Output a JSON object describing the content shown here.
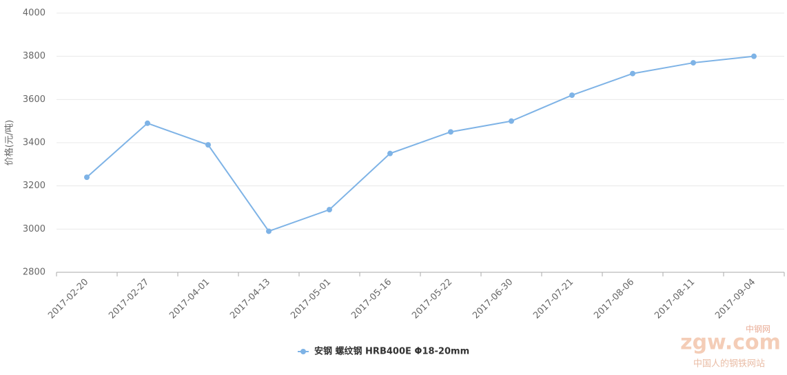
{
  "chart_data": {
    "type": "line",
    "y_label": "价格(元/吨)",
    "categories": [
      "2017-02-20",
      "2017-02-27",
      "2017-04-01",
      "2017-04-13",
      "2017-05-01",
      "2017-05-16",
      "2017-05-22",
      "2017-06-30",
      "2017-07-21",
      "2017-08-06",
      "2017-08-11",
      "2017-09-04"
    ],
    "series": [
      {
        "name": "安钢 螺纹钢 HRB400E Φ18-20mm",
        "color": "#7eb3e6",
        "values": [
          3240,
          3490,
          3390,
          2990,
          3090,
          3350,
          3450,
          3500,
          3620,
          3720,
          3770,
          3800
        ]
      }
    ],
    "ylim": [
      2800,
      4000
    ],
    "yticks": [
      2800,
      3000,
      3200,
      3400,
      3600,
      3800,
      4000
    ],
    "grid": true
  },
  "watermark": {
    "logo": "zgw.com",
    "brand": "中钢网",
    "slogan": "中国人的钢铁网站"
  }
}
